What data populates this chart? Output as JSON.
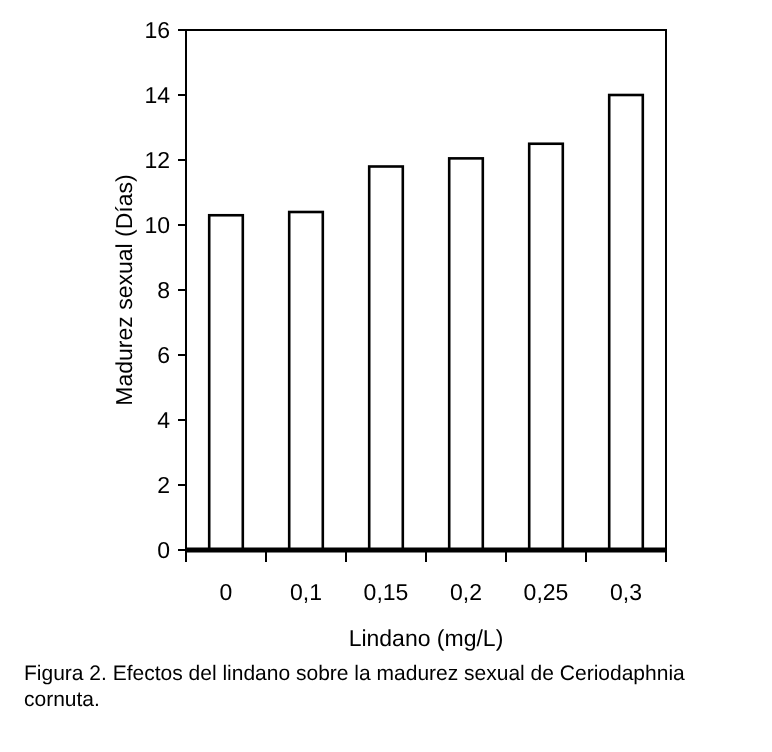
{
  "chart_data": {
    "type": "bar",
    "xlabel": "Lindano (mg/L)",
    "ylabel": "Madurez sexual (Días)",
    "categories": [
      "0",
      "0,1",
      "0,15",
      "0,2",
      "0,25",
      "0,3"
    ],
    "values": [
      10.3,
      10.4,
      11.8,
      12.05,
      12.5,
      14.0
    ],
    "color": "#ffffff",
    "ylim": [
      0,
      16
    ],
    "yticks": [
      0,
      2,
      4,
      6,
      8,
      10,
      12,
      14,
      16
    ],
    "grid": false,
    "annotations": [
      "Figura 2. Efectos del lindano sobre la madurez sexual de Ceriodaphnia cornuta."
    ]
  }
}
